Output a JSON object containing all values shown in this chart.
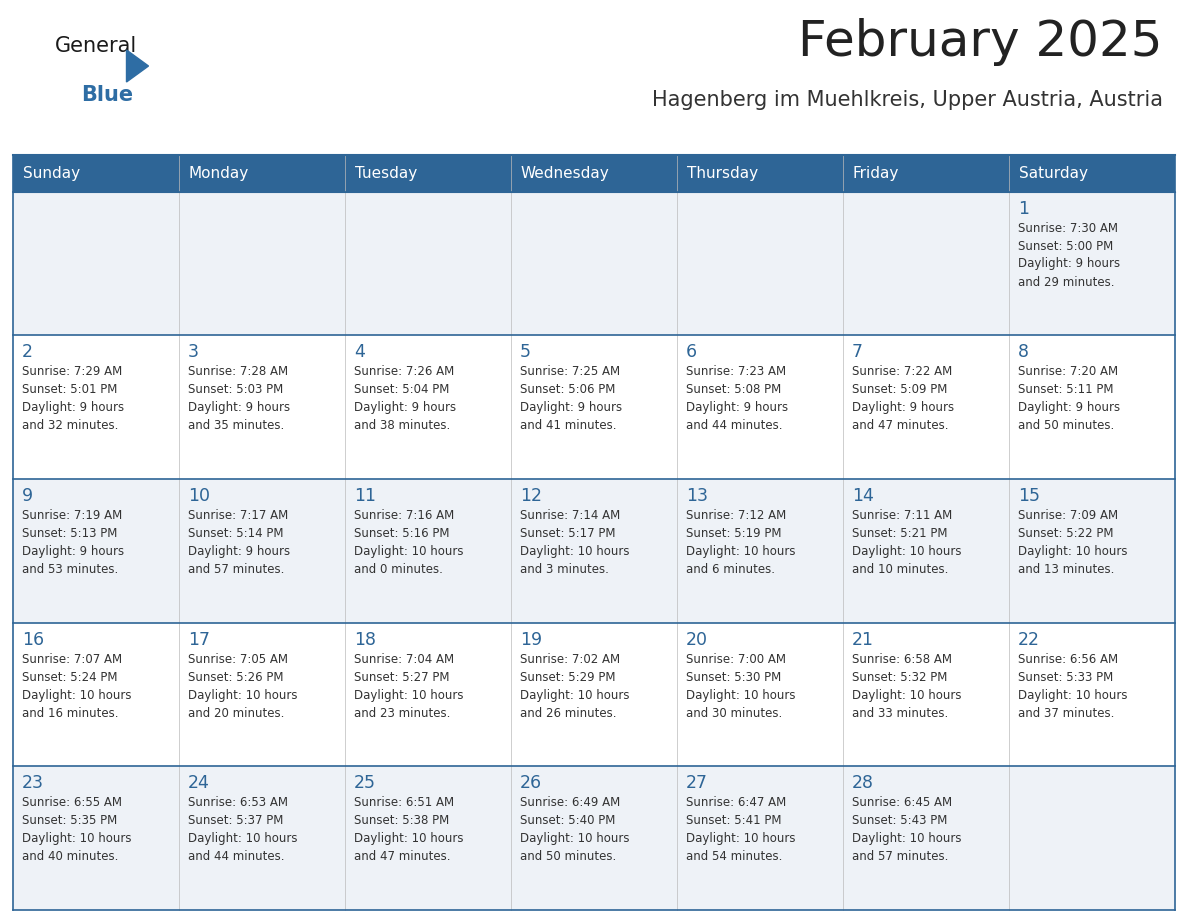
{
  "title": "February 2025",
  "subtitle": "Hagenberg im Muehlkreis, Upper Austria, Austria",
  "days_of_week": [
    "Sunday",
    "Monday",
    "Tuesday",
    "Wednesday",
    "Thursday",
    "Friday",
    "Saturday"
  ],
  "header_bg": "#2e6596",
  "header_text": "#ffffff",
  "row_bg_light": "#eef2f7",
  "row_bg_white": "#ffffff",
  "border_color": "#2e6596",
  "day_num_color": "#2e6596",
  "text_color": "#333333",
  "logo_general_color": "#1a1a1a",
  "logo_blue_color": "#2e6da4",
  "calendar_data": [
    [
      {
        "day": null,
        "info": ""
      },
      {
        "day": null,
        "info": ""
      },
      {
        "day": null,
        "info": ""
      },
      {
        "day": null,
        "info": ""
      },
      {
        "day": null,
        "info": ""
      },
      {
        "day": null,
        "info": ""
      },
      {
        "day": 1,
        "info": "Sunrise: 7:30 AM\nSunset: 5:00 PM\nDaylight: 9 hours\nand 29 minutes."
      }
    ],
    [
      {
        "day": 2,
        "info": "Sunrise: 7:29 AM\nSunset: 5:01 PM\nDaylight: 9 hours\nand 32 minutes."
      },
      {
        "day": 3,
        "info": "Sunrise: 7:28 AM\nSunset: 5:03 PM\nDaylight: 9 hours\nand 35 minutes."
      },
      {
        "day": 4,
        "info": "Sunrise: 7:26 AM\nSunset: 5:04 PM\nDaylight: 9 hours\nand 38 minutes."
      },
      {
        "day": 5,
        "info": "Sunrise: 7:25 AM\nSunset: 5:06 PM\nDaylight: 9 hours\nand 41 minutes."
      },
      {
        "day": 6,
        "info": "Sunrise: 7:23 AM\nSunset: 5:08 PM\nDaylight: 9 hours\nand 44 minutes."
      },
      {
        "day": 7,
        "info": "Sunrise: 7:22 AM\nSunset: 5:09 PM\nDaylight: 9 hours\nand 47 minutes."
      },
      {
        "day": 8,
        "info": "Sunrise: 7:20 AM\nSunset: 5:11 PM\nDaylight: 9 hours\nand 50 minutes."
      }
    ],
    [
      {
        "day": 9,
        "info": "Sunrise: 7:19 AM\nSunset: 5:13 PM\nDaylight: 9 hours\nand 53 minutes."
      },
      {
        "day": 10,
        "info": "Sunrise: 7:17 AM\nSunset: 5:14 PM\nDaylight: 9 hours\nand 57 minutes."
      },
      {
        "day": 11,
        "info": "Sunrise: 7:16 AM\nSunset: 5:16 PM\nDaylight: 10 hours\nand 0 minutes."
      },
      {
        "day": 12,
        "info": "Sunrise: 7:14 AM\nSunset: 5:17 PM\nDaylight: 10 hours\nand 3 minutes."
      },
      {
        "day": 13,
        "info": "Sunrise: 7:12 AM\nSunset: 5:19 PM\nDaylight: 10 hours\nand 6 minutes."
      },
      {
        "day": 14,
        "info": "Sunrise: 7:11 AM\nSunset: 5:21 PM\nDaylight: 10 hours\nand 10 minutes."
      },
      {
        "day": 15,
        "info": "Sunrise: 7:09 AM\nSunset: 5:22 PM\nDaylight: 10 hours\nand 13 minutes."
      }
    ],
    [
      {
        "day": 16,
        "info": "Sunrise: 7:07 AM\nSunset: 5:24 PM\nDaylight: 10 hours\nand 16 minutes."
      },
      {
        "day": 17,
        "info": "Sunrise: 7:05 AM\nSunset: 5:26 PM\nDaylight: 10 hours\nand 20 minutes."
      },
      {
        "day": 18,
        "info": "Sunrise: 7:04 AM\nSunset: 5:27 PM\nDaylight: 10 hours\nand 23 minutes."
      },
      {
        "day": 19,
        "info": "Sunrise: 7:02 AM\nSunset: 5:29 PM\nDaylight: 10 hours\nand 26 minutes."
      },
      {
        "day": 20,
        "info": "Sunrise: 7:00 AM\nSunset: 5:30 PM\nDaylight: 10 hours\nand 30 minutes."
      },
      {
        "day": 21,
        "info": "Sunrise: 6:58 AM\nSunset: 5:32 PM\nDaylight: 10 hours\nand 33 minutes."
      },
      {
        "day": 22,
        "info": "Sunrise: 6:56 AM\nSunset: 5:33 PM\nDaylight: 10 hours\nand 37 minutes."
      }
    ],
    [
      {
        "day": 23,
        "info": "Sunrise: 6:55 AM\nSunset: 5:35 PM\nDaylight: 10 hours\nand 40 minutes."
      },
      {
        "day": 24,
        "info": "Sunrise: 6:53 AM\nSunset: 5:37 PM\nDaylight: 10 hours\nand 44 minutes."
      },
      {
        "day": 25,
        "info": "Sunrise: 6:51 AM\nSunset: 5:38 PM\nDaylight: 10 hours\nand 47 minutes."
      },
      {
        "day": 26,
        "info": "Sunrise: 6:49 AM\nSunset: 5:40 PM\nDaylight: 10 hours\nand 50 minutes."
      },
      {
        "day": 27,
        "info": "Sunrise: 6:47 AM\nSunset: 5:41 PM\nDaylight: 10 hours\nand 54 minutes."
      },
      {
        "day": 28,
        "info": "Sunrise: 6:45 AM\nSunset: 5:43 PM\nDaylight: 10 hours\nand 57 minutes."
      },
      {
        "day": null,
        "info": ""
      }
    ]
  ]
}
